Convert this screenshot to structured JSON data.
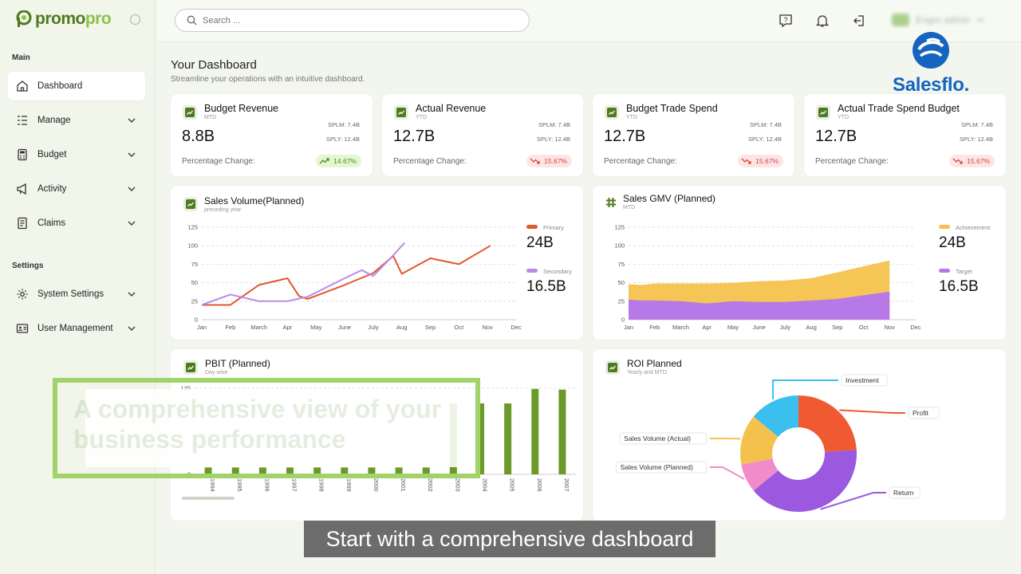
{
  "app": {
    "logo_left": "promo",
    "logo_right": "pro"
  },
  "sidebar": {
    "main_label": "Main",
    "settings_label": "Settings",
    "items": [
      {
        "label": "Dashboard"
      },
      {
        "label": "Manage"
      },
      {
        "label": "Budget"
      },
      {
        "label": "Activity"
      },
      {
        "label": "Claims"
      },
      {
        "label": "System Settings"
      },
      {
        "label": "User Management"
      }
    ]
  },
  "topbar": {
    "search_placeholder": "Search ...",
    "user_name": "Engro admin"
  },
  "brand": {
    "name": "Salesflo."
  },
  "dashboard": {
    "title": "Your Dashboard",
    "subtitle": "Streamline your operations with an intuitive dashboard."
  },
  "kpis": [
    {
      "title": "Budget Revenue",
      "period": "MTD",
      "value": "8.8B",
      "splm": "SPLM: 7.4B",
      "sply": "SPLY: 12.4B",
      "change_label": "Percentage Change:",
      "change": "14.67%",
      "trend": "up"
    },
    {
      "title": "Actual Revenue",
      "period": "YTD",
      "value": "12.7B",
      "splm": "SPLM: 7.4B",
      "sply": "SPLY: 12.4B",
      "change_label": "Percentage Change:",
      "change": "15.67%",
      "trend": "down"
    },
    {
      "title": "Budget Trade Spend",
      "period": "YTD",
      "value": "12.7B",
      "splm": "SPLM: 7.4B",
      "sply": "SPLY: 12.4B",
      "change_label": "Percentage Change:",
      "change": "15.67%",
      "trend": "down"
    },
    {
      "title": "Actual Trade Spend Budget",
      "period": "YTD",
      "value": "12.7B",
      "splm": "SPLM: 7.4B",
      "sply": "SPLY: 12.4B",
      "change_label": "Percentage Change:",
      "change": "15.67%",
      "trend": "down"
    }
  ],
  "colors": {
    "primary": "#e2572b",
    "secondary": "#b98ae8",
    "achievement": "#f4c24c",
    "target": "#b475f0",
    "bar": "#6b9a2a",
    "accent": "#4f7a20"
  },
  "chart_data": [
    {
      "type": "line",
      "title": "Sales Volume(Planned)",
      "subtitle": "preceding year",
      "categories": [
        "Jan",
        "Feb",
        "March",
        "Apr",
        "May",
        "June",
        "July",
        "Aug",
        "Sep",
        "Oct",
        "Nov",
        "Dec"
      ],
      "ylim": [
        0,
        125
      ],
      "yticks": [
        0,
        25,
        50,
        75,
        100,
        125
      ],
      "grid": true,
      "series": [
        {
          "name": "Primary",
          "total": "24B",
          "x": [
            0,
            1,
            2,
            3,
            3.4,
            3.7,
            5,
            6,
            6.7,
            7,
            8,
            9,
            10.1
          ],
          "y": [
            20,
            20,
            47,
            56,
            32,
            28,
            47,
            63,
            86,
            62,
            83,
            75,
            100
          ]
        },
        {
          "name": "Secondary",
          "total": "16.5B",
          "x": [
            0,
            1,
            2,
            3,
            3.7,
            5,
            5.6,
            6,
            6.7,
            7.1
          ],
          "y": [
            20,
            34,
            25,
            25,
            31,
            56,
            67,
            59,
            87,
            104
          ]
        }
      ]
    },
    {
      "type": "area",
      "title": "Sales GMV (Planned)",
      "subtitle": "MTD",
      "categories": [
        "Jan",
        "Feb",
        "March",
        "Apr",
        "May",
        "June",
        "July",
        "Aug",
        "Sep",
        "Oct",
        "Nov",
        "Dec"
      ],
      "ylim": [
        0,
        125
      ],
      "yticks": [
        0,
        25,
        50,
        75,
        100,
        125
      ],
      "grid": true,
      "series": [
        {
          "name": "Achievement",
          "total": "24B",
          "x": [
            0,
            0.5,
            1,
            2,
            3,
            4,
            5,
            6,
            7,
            8,
            9,
            10
          ],
          "y": [
            48,
            47,
            49,
            49,
            49,
            50,
            52,
            53,
            56,
            64,
            72,
            80
          ]
        },
        {
          "name": "Target",
          "total": "16.5B",
          "x": [
            0,
            0.5,
            1,
            2,
            3,
            4,
            5,
            6,
            7,
            8,
            9,
            10
          ],
          "y": [
            27,
            26,
            26,
            25,
            22,
            25,
            24,
            24,
            26,
            28,
            33,
            38
          ]
        }
      ]
    },
    {
      "type": "bar",
      "title": "PBIT (Planned)",
      "subtitle": "Day wise",
      "categories": [
        "1994",
        "1995",
        "1996",
        "1997",
        "1998",
        "1999",
        "2000",
        "2001",
        "2002",
        "2003",
        "2004",
        "2005",
        "2006",
        "2007"
      ],
      "ylim": [
        0,
        125
      ],
      "yticks": [
        0,
        125
      ],
      "values": [
        10,
        10,
        10,
        10,
        10,
        10,
        10,
        10,
        10,
        103,
        103,
        103,
        124,
        123
      ]
    },
    {
      "type": "pie",
      "title": "ROI Planned",
      "subtitle": "Yearly and MTD",
      "labels": [
        "Profit",
        "Return",
        "Sales Volume (Planned)",
        "Sales Volume (Actual)",
        "Investment"
      ],
      "values": [
        24,
        40,
        8,
        14,
        14
      ],
      "colors": [
        "#ef5a32",
        "#9b59e0",
        "#f28cc8",
        "#f4c24c",
        "#3bbfee"
      ]
    }
  ],
  "overlay": {
    "text": "A comprehensive view of your business performance",
    "caption": "Start with a comprehensive dashboard"
  }
}
